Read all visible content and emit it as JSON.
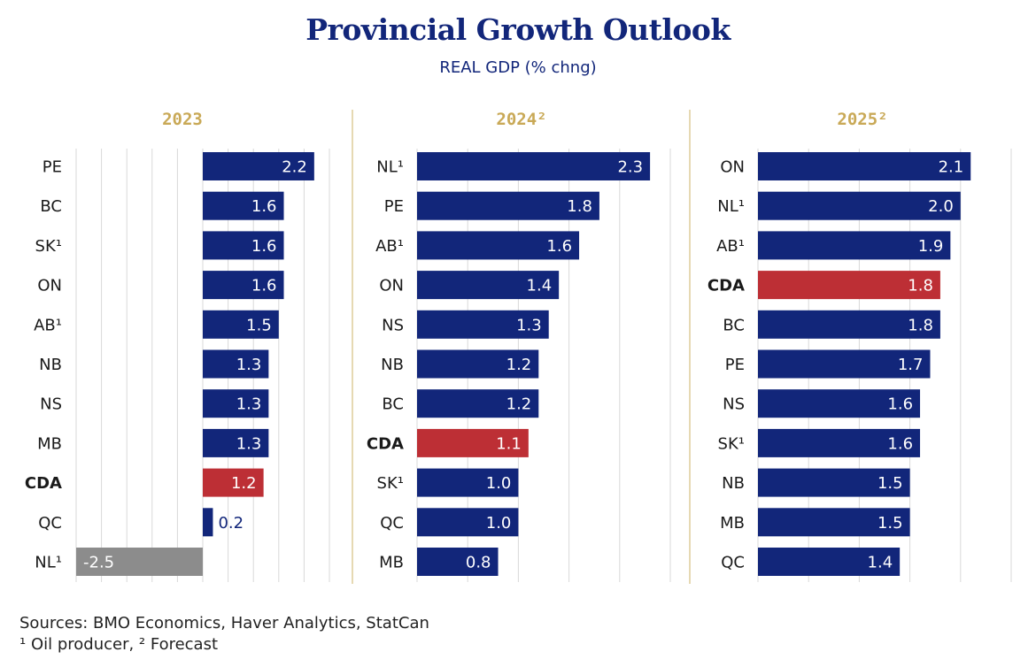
{
  "header": {
    "title": "Provincial Growth Outlook",
    "subtitle": "REAL GDP (% chng)"
  },
  "footer": {
    "sources": "Sources: BMO Economics, Haver Analytics, StatCan",
    "notes": "¹ Oil producer, ² Forecast"
  },
  "colors": {
    "bar": "#12267a",
    "highlight": "#bd2f35",
    "negative": "#8c8c8c",
    "panel_title": "#c9a957",
    "divider": "#e6d9b3",
    "grid": "#d9d9d9"
  },
  "chart_data": [
    {
      "type": "bar",
      "orientation": "horizontal",
      "title": "2023",
      "categories": [
        "PE",
        "BC",
        "SK¹",
        "ON",
        "AB¹",
        "NB",
        "NS",
        "MB",
        "CDA",
        "QC",
        "NL¹"
      ],
      "values": [
        2.2,
        1.6,
        1.6,
        1.6,
        1.5,
        1.3,
        1.3,
        1.3,
        1.2,
        0.2,
        -2.5
      ],
      "labels": [
        "2.2",
        "1.6",
        "1.6",
        "1.6",
        "1.5",
        "1.3",
        "1.3",
        "1.3",
        "1.2",
        "0.2",
        "-2.5"
      ],
      "highlight": "CDA",
      "xlim": [
        -2.5,
        2.5
      ],
      "grid": true
    },
    {
      "type": "bar",
      "orientation": "horizontal",
      "title": "2024²",
      "categories": [
        "NL¹",
        "PE",
        "AB¹",
        "ON",
        "NS",
        "NB",
        "BC",
        "CDA",
        "SK¹",
        "QC",
        "MB"
      ],
      "values": [
        2.3,
        1.8,
        1.6,
        1.4,
        1.3,
        1.2,
        1.2,
        1.1,
        1.0,
        1.0,
        0.8
      ],
      "labels": [
        "2.3",
        "1.8",
        "1.6",
        "1.4",
        "1.3",
        "1.2",
        "1.2",
        "1.1",
        "1.0",
        "1.0",
        "0.8"
      ],
      "highlight": "CDA",
      "xlim": [
        0,
        2.5
      ],
      "grid": true
    },
    {
      "type": "bar",
      "orientation": "horizontal",
      "title": "2025²",
      "categories": [
        "ON",
        "NL¹",
        "AB¹",
        "CDA",
        "BC",
        "PE",
        "NS",
        "SK¹",
        "NB",
        "MB",
        "QC"
      ],
      "values": [
        2.1,
        2.0,
        1.9,
        1.8,
        1.8,
        1.7,
        1.6,
        1.6,
        1.5,
        1.5,
        1.4
      ],
      "labels": [
        "2.1",
        "2.0",
        "1.9",
        "1.8",
        "1.8",
        "1.7",
        "1.6",
        "1.6",
        "1.5",
        "1.5",
        "1.4"
      ],
      "highlight": "CDA",
      "xlim": [
        0,
        2.5
      ],
      "grid": true
    }
  ]
}
